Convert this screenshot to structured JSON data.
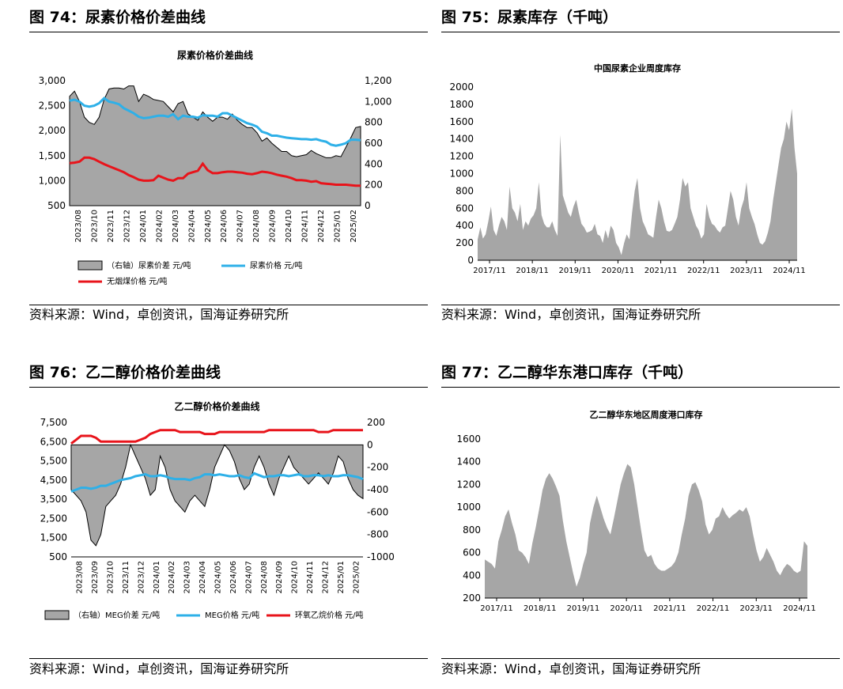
{
  "source_text": "资料来源：Wind，卓创资讯，国海证券研究所",
  "figures": [
    {
      "fig_title": "图 74：尿素价格价差曲线",
      "chart_data": {
        "type": "line",
        "title": "尿素价格价差曲线",
        "x_labels": [
          "2023/08",
          "2023/10",
          "2023/11",
          "2023/12",
          "2024/01",
          "2024/02",
          "2024/03",
          "2024/04",
          "2024/05",
          "2024/06",
          "2024/07",
          "2024/08",
          "2024/09",
          "2024/10",
          "2024/11",
          "2024/12",
          "2025/01",
          "2025/02"
        ],
        "left_ticks": [
          "3,000",
          "2,500",
          "2,000",
          "1,500",
          "1,000",
          "500"
        ],
        "right_ticks": [
          "1,200",
          "1,000",
          "800",
          "600",
          "400",
          "200",
          "0"
        ],
        "ylim_left": [
          500,
          3000
        ],
        "ylim_right": [
          0,
          1200
        ],
        "series": [
          {
            "name": "（右轴）尿素价差  元/吨",
            "kind": "area",
            "axis": "right",
            "color": "#a6a6a6",
            "values": [
              1050,
              1100,
              1000,
              850,
              800,
              780,
              850,
              1020,
              1120,
              1130,
              1130,
              1120,
              1150,
              1150,
              1000,
              1070,
              1050,
              1020,
              1010,
              1000,
              950,
              900,
              980,
              1000,
              880,
              850,
              820,
              900,
              850,
              810,
              850,
              850,
              830,
              880,
              820,
              780,
              750,
              750,
              700,
              620,
              650,
              600,
              560,
              520,
              520,
              480,
              470,
              480,
              490,
              530,
              500,
              480,
              460,
              460,
              480,
              470,
              560,
              650,
              750,
              760
            ]
          },
          {
            "name": "尿素价格  元/吨",
            "kind": "line",
            "axis": "left",
            "color": "#2eb0e8",
            "values": [
              2600,
              2620,
              2580,
              2500,
              2480,
              2500,
              2550,
              2650,
              2580,
              2560,
              2530,
              2450,
              2400,
              2350,
              2280,
              2250,
              2260,
              2280,
              2300,
              2300,
              2280,
              2330,
              2230,
              2300,
              2280,
              2280,
              2260,
              2310,
              2300,
              2300,
              2280,
              2350,
              2350,
              2300,
              2250,
              2200,
              2150,
              2120,
              2080,
              1980,
              1950,
              1900,
              1900,
              1880,
              1860,
              1850,
              1840,
              1830,
              1830,
              1820,
              1830,
              1800,
              1780,
              1720,
              1700,
              1720,
              1750,
              1820,
              1820,
              1810
            ]
          },
          {
            "name": "无烟煤价格  元/吨",
            "kind": "line",
            "axis": "left",
            "color": "#e8141b",
            "values": [
              1350,
              1360,
              1380,
              1460,
              1460,
              1430,
              1380,
              1330,
              1290,
              1250,
              1210,
              1170,
              1110,
              1070,
              1020,
              1000,
              1000,
              1010,
              1100,
              1060,
              1020,
              1000,
              1050,
              1050,
              1140,
              1170,
              1200,
              1340,
              1210,
              1150,
              1150,
              1170,
              1180,
              1180,
              1170,
              1160,
              1140,
              1130,
              1150,
              1180,
              1170,
              1150,
              1120,
              1100,
              1080,
              1050,
              1010,
              1010,
              1000,
              980,
              990,
              950,
              940,
              930,
              920,
              920,
              920,
              910,
              900,
              900
            ]
          }
        ]
      }
    },
    {
      "fig_title": "图 75：尿素库存（千吨）",
      "chart_data": {
        "type": "area",
        "title": "中国尿素企业周度库存",
        "x_labels": [
          "2017/11",
          "2018/11",
          "2019/11",
          "2020/11",
          "2021/11",
          "2022/11",
          "2023/11",
          "2024/11"
        ],
        "left_ticks": [
          "2000",
          "1800",
          "1600",
          "1400",
          "1200",
          "1000",
          "800",
          "600",
          "400",
          "200",
          "0"
        ],
        "ylim": [
          0,
          2000
        ],
        "series": [
          {
            "name": "",
            "color": "#a6a6a6",
            "values": [
              240,
              380,
              250,
              300,
              450,
              620,
              350,
              280,
              400,
              500,
              450,
              350,
              850,
              600,
              550,
              450,
              650,
              350,
              450,
              400,
              480,
              520,
              600,
              900,
              520,
              420,
              380,
              380,
              450,
              350,
              280,
              1450,
              750,
              650,
              550,
              500,
              620,
              700,
              550,
              420,
              380,
              320,
              330,
              350,
              420,
              300,
              280,
              200,
              350,
              250,
              400,
              350,
              200,
              150,
              60,
              200,
              300,
              240,
              550,
              800,
              950,
              600,
              450,
              380,
              300,
              280,
              260,
              500,
              700,
              600,
              450,
              340,
              330,
              350,
              420,
              500,
              700,
              950,
              850,
              900,
              600,
              500,
              400,
              350,
              250,
              300,
              650,
              500,
              420,
              400,
              350,
              320,
              380,
              400,
              600,
              800,
              700,
              500,
              400,
              600,
              700,
              900,
              600,
              500,
              420,
              300,
              200,
              180,
              220,
              320,
              450,
              700,
              900,
              1100,
              1300,
              1400,
              1600,
              1500,
              1750,
              1300,
              1000
            ]
          }
        ]
      }
    },
    {
      "fig_title": "图 76：乙二醇价格价差曲线",
      "chart_data": {
        "type": "line",
        "title": "乙二醇价格价差曲线",
        "x_labels": [
          "2023/08",
          "2023/09",
          "2023/10",
          "2023/11",
          "2023/12",
          "2024/01",
          "2024/02",
          "2024/03",
          "2024/04",
          "2024/05",
          "2024/06",
          "2024/07",
          "2024/08",
          "2024/09",
          "2024/10",
          "2024/11",
          "2024/12",
          "2025/01",
          "2025/02"
        ],
        "left_ticks": [
          "7,500",
          "6,500",
          "5,500",
          "4,500",
          "3,500",
          "2,500",
          "1,500",
          "500"
        ],
        "right_ticks": [
          "200",
          "0",
          "-200",
          "-400",
          "-600",
          "-800",
          "-1000"
        ],
        "ylim_left": [
          500,
          7500
        ],
        "ylim_right": [
          -1000,
          200
        ],
        "series": [
          {
            "name": "（右轴）MEG价差  元/吨",
            "kind": "area",
            "axis": "right",
            "color": "#a6a6a6",
            "values": [
              -400,
              -450,
              -500,
              -600,
              -850,
              -900,
              -800,
              -550,
              -500,
              -450,
              -350,
              -200,
              0,
              -100,
              -200,
              -300,
              -450,
              -400,
              -100,
              -200,
              -400,
              -500,
              -550,
              -600,
              -500,
              -450,
              -500,
              -550,
              -400,
              -200,
              -100,
              0,
              -50,
              -150,
              -300,
              -400,
              -350,
              -200,
              -100,
              -200,
              -350,
              -450,
              -300,
              -200,
              -100,
              -200,
              -250,
              -300,
              -350,
              -300,
              -250,
              -300,
              -350,
              -250,
              -100,
              -150,
              -300,
              -400,
              -450,
              -480
            ]
          },
          {
            "name": "MEG价格  元/吨",
            "kind": "line",
            "axis": "left",
            "color": "#2eb0e8",
            "values": [
              3900,
              4000,
              4100,
              4100,
              4050,
              4100,
              4200,
              4200,
              4300,
              4400,
              4500,
              4550,
              4600,
              4700,
              4750,
              4800,
              4700,
              4700,
              4750,
              4700,
              4600,
              4550,
              4550,
              4550,
              4500,
              4600,
              4650,
              4800,
              4800,
              4750,
              4800,
              4750,
              4700,
              4700,
              4750,
              4650,
              4600,
              4850,
              4750,
              4650,
              4700,
              4700,
              4750,
              4750,
              4700,
              4750,
              4800,
              4700,
              4700,
              4750,
              4750,
              4700,
              4750,
              4700,
              4700,
              4750,
              4750,
              4700,
              4650,
              4550
            ]
          },
          {
            "name": "环氧乙烷价格  元/吨",
            "kind": "line",
            "axis": "left",
            "color": "#e8141b",
            "values": [
              6400,
              6600,
              6800,
              6800,
              6800,
              6700,
              6500,
              6500,
              6500,
              6500,
              6500,
              6500,
              6500,
              6500,
              6600,
              6700,
              6900,
              7000,
              7100,
              7100,
              7100,
              7100,
              7000,
              7000,
              7000,
              7000,
              7000,
              6900,
              6900,
              6900,
              7000,
              7000,
              7000,
              7000,
              7000,
              7000,
              7000,
              7000,
              7000,
              7000,
              7100,
              7100,
              7100,
              7100,
              7100,
              7100,
              7100,
              7100,
              7100,
              7100,
              7000,
              7000,
              7000,
              7100,
              7100,
              7100,
              7100,
              7100,
              7100,
              7100
            ]
          }
        ]
      }
    },
    {
      "fig_title": "图 77：乙二醇华东港口库存（千吨）",
      "chart_data": {
        "type": "area",
        "title": "乙二醇华东地区周度港口库存",
        "x_labels": [
          "2017/11",
          "2018/11",
          "2019/11",
          "2020/11",
          "2021/11",
          "2022/11",
          "2023/11",
          "2024/11"
        ],
        "left_ticks": [
          "1600",
          "1400",
          "1200",
          "1000",
          "800",
          "600",
          "400",
          "200"
        ],
        "ylim": [
          200,
          1600
        ],
        "series": [
          {
            "name": "",
            "color": "#a6a6a6",
            "values": [
              540,
              520,
              500,
              460,
              700,
              800,
              920,
              980,
              860,
              760,
              620,
              600,
              560,
              500,
              680,
              820,
              980,
              1150,
              1250,
              1300,
              1250,
              1180,
              1100,
              880,
              700,
              560,
              420,
              300,
              380,
              500,
              600,
              860,
              1000,
              1100,
              1000,
              900,
              820,
              760,
              900,
              1050,
              1200,
              1300,
              1380,
              1350,
              1200,
              1000,
              800,
              620,
              560,
              580,
              500,
              460,
              440,
              440,
              460,
              480,
              520,
              600,
              760,
              900,
              1100,
              1200,
              1220,
              1150,
              1050,
              850,
              760,
              800,
              900,
              920,
              1000,
              940,
              900,
              930,
              950,
              980,
              960,
              1000,
              920,
              760,
              620,
              520,
              560,
              640,
              580,
              520,
              440,
              400,
              460,
              500,
              480,
              440,
              420,
              440,
              700,
              660
            ]
          }
        ]
      }
    }
  ]
}
